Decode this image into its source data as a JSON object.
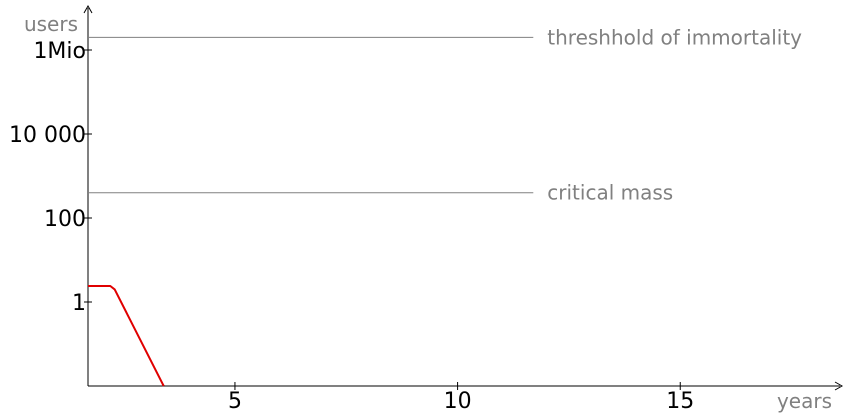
{
  "chart_data": {
    "type": "line",
    "xlabel": "years",
    "ylabel": "users",
    "x_scale": "linear",
    "y_scale": "log",
    "xlim": [
      1.7,
      18.7
    ],
    "ylim": [
      0.01,
      10000000
    ],
    "x_ticks": [
      {
        "value": 5,
        "label": "5"
      },
      {
        "value": 10,
        "label": "10"
      },
      {
        "value": 15,
        "label": "15"
      }
    ],
    "y_ticks": [
      {
        "value": 1,
        "label": "1"
      },
      {
        "value": 100,
        "label": "100"
      },
      {
        "value": 10000,
        "label": "10 000"
      },
      {
        "value": 1000000,
        "label": "1Mio"
      }
    ],
    "reference_lines": [
      {
        "label": "threshhold of immortality",
        "value": 2000000,
        "x_end": 11.7,
        "color": "#808080"
      },
      {
        "label": "critical mass",
        "value": 400,
        "x_end": 11.7,
        "color": "#808080"
      }
    ],
    "series": [
      {
        "color": "#e00000",
        "points": [
          [
            1.7,
            2.4
          ],
          [
            2.2,
            2.4
          ],
          [
            2.3,
            2.0
          ],
          [
            3.4,
            0.01
          ]
        ]
      }
    ],
    "grid": false,
    "legend": "none"
  }
}
